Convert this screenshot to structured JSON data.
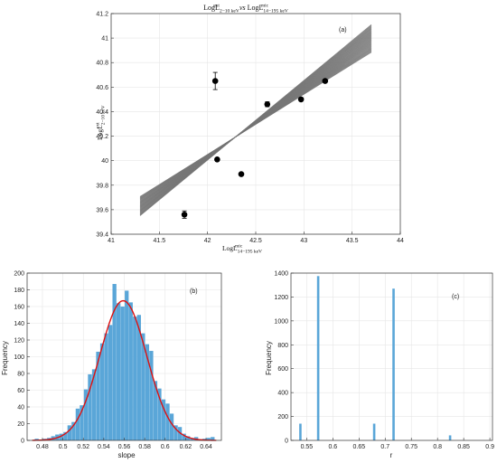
{
  "chart_data": [
    {
      "type": "scatter",
      "panel_label": "(a)",
      "title_parts": {
        "t1": "LogL",
        "t1_sub": "2−10 keV",
        "t1_sup": "ext",
        "vs": "vs",
        "t2": "LogL",
        "t2_sub": "14−195 keV",
        "t2_sup": "mic"
      },
      "xlabel_parts": {
        "main": "LogL",
        "sub": "14−195 keV",
        "sup": "mic"
      },
      "ylabel_parts": {
        "main": "LogL",
        "sub": "2−10 keV",
        "sup": "ext"
      },
      "xlim": [
        41,
        44
      ],
      "ylim": [
        39.4,
        41.2
      ],
      "xticks": [
        "41",
        "41.5",
        "42",
        "42.5",
        "43",
        "43.5",
        "44"
      ],
      "yticks": [
        "39.4",
        "39.6",
        "39.8",
        "40",
        "40.2",
        "40.4",
        "40.6",
        "40.8",
        "41",
        "41.2"
      ],
      "points": [
        {
          "x": 41.76,
          "y": 39.56,
          "err": 0.03
        },
        {
          "x": 42.08,
          "y": 40.65,
          "err": 0.07
        },
        {
          "x": 42.1,
          "y": 40.01,
          "err": 0.0
        },
        {
          "x": 42.35,
          "y": 39.89,
          "err": 0.0
        },
        {
          "x": 42.62,
          "y": 40.46,
          "err": 0.02
        },
        {
          "x": 42.97,
          "y": 40.5,
          "err": 0.0
        },
        {
          "x": 43.22,
          "y": 40.65,
          "err": 0.0
        }
      ],
      "fit_lines": {
        "x_range": [
          41.3,
          43.7
        ],
        "pivot_x": 42.6,
        "pivot_y": 40.37,
        "slope_min": 0.49,
        "slope_max": 0.65,
        "count": 45,
        "color": "#777777"
      },
      "grid": true
    },
    {
      "type": "histogram",
      "panel_label": "(b)",
      "xlabel": "slope",
      "ylabel": "Frequency",
      "xlim": [
        0.465,
        0.655
      ],
      "ylim": [
        0,
        200
      ],
      "xticks": [
        "0.48",
        "0.5",
        "0.52",
        "0.54",
        "0.56",
        "0.58",
        "0.6",
        "0.62",
        "0.64"
      ],
      "yticks": [
        "0",
        "20",
        "40",
        "60",
        "80",
        "100",
        "120",
        "140",
        "160",
        "180",
        "200"
      ],
      "bin_start": 0.4725,
      "bin_width": 0.004,
      "counts": [
        2,
        1,
        2,
        3,
        5,
        7,
        8,
        10,
        18,
        22,
        38,
        42,
        61,
        79,
        85,
        106,
        116,
        128,
        138,
        187,
        164,
        160,
        179,
        165,
        148,
        150,
        128,
        115,
        107,
        71,
        62,
        49,
        44,
        32,
        18,
        16,
        8,
        5,
        3,
        4,
        1,
        2,
        3,
        4
      ],
      "bar_color": "#5aa6d8",
      "fit_curve": {
        "mean": 0.559,
        "sd": 0.023,
        "peak": 167,
        "color": "#dd1111"
      },
      "grid": true
    },
    {
      "type": "bar",
      "panel_label": "(c)",
      "xlabel": "r",
      "ylabel": "Frequency",
      "xlim": [
        0.52,
        0.905
      ],
      "ylim": [
        0,
        1400
      ],
      "xticks": [
        "0.55",
        "0.6",
        "0.65",
        "0.7",
        "0.75",
        "0.8",
        "0.85",
        "0.9"
      ],
      "yticks": [
        "0",
        "200",
        "400",
        "600",
        "800",
        "1000",
        "1200",
        "1400"
      ],
      "bars": [
        {
          "x": 0.538,
          "y": 140
        },
        {
          "x": 0.572,
          "y": 1375
        },
        {
          "x": 0.679,
          "y": 140
        },
        {
          "x": 0.716,
          "y": 1270
        },
        {
          "x": 0.824,
          "y": 42
        }
      ],
      "bar_color": "#5aa6d8",
      "grid": true
    }
  ]
}
